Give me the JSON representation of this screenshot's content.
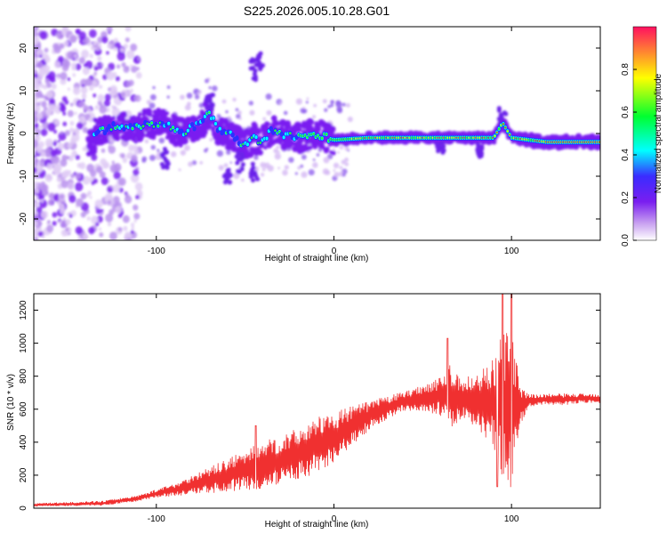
{
  "title": "S225.2026.005.10.28.G01",
  "chart_data": [
    {
      "type": "heatmap",
      "xlabel": "Height of straight line (km)",
      "ylabel": "Frequency (Hz)",
      "xlim": [
        -169,
        150
      ],
      "ylim": [
        -25,
        25
      ],
      "xticks": [
        -100,
        0,
        100
      ],
      "xtick_labels": [
        "-100",
        "0",
        "100"
      ],
      "yticks": [
        -20,
        -10,
        0,
        10,
        20
      ],
      "ytick_labels": [
        "-20",
        "-10",
        "0",
        "10",
        "20"
      ],
      "colorbar": {
        "label": "Normalized spectral amplitude",
        "range": [
          0,
          1
        ],
        "ticks": [
          0.0,
          0.2,
          0.4,
          0.6,
          0.8
        ],
        "tick_labels": [
          "0.0",
          "0.2",
          "0.4",
          "0.6",
          "0.8"
        ],
        "colors": [
          "#ffffff",
          "#c8a0f0",
          "#7a1ef0",
          "#3a2cff",
          "#00ffff",
          "#00ff30",
          "#ffff00",
          "#ff2020"
        ]
      },
      "ridge_frequency_hz": [
        [
          -135,
          0.0
        ],
        [
          -125,
          1.5
        ],
        [
          -115,
          1.8
        ],
        [
          -105,
          2.0
        ],
        [
          -95,
          2.5
        ],
        [
          -90,
          1.0
        ],
        [
          -85,
          0.0
        ],
        [
          -80,
          1.5
        ],
        [
          -75,
          2.0
        ],
        [
          -70,
          5.0
        ],
        [
          -65,
          1.0
        ],
        [
          -60,
          0.0
        ],
        [
          -55,
          -1.0
        ],
        [
          -50,
          -3.0
        ],
        [
          -45,
          -1.0
        ],
        [
          -40,
          -2.0
        ],
        [
          -35,
          1.0
        ],
        [
          -30,
          0.0
        ],
        [
          -20,
          -1.0
        ],
        [
          -10,
          0.0
        ],
        [
          0,
          -1.5
        ],
        [
          20,
          -1.0
        ],
        [
          40,
          -1.0
        ],
        [
          60,
          -1.0
        ],
        [
          80,
          -1.0
        ],
        [
          90,
          -1.0
        ],
        [
          95,
          2.5
        ],
        [
          100,
          -1.0
        ],
        [
          120,
          -2.0
        ],
        [
          150,
          -2.0
        ]
      ]
    },
    {
      "type": "line",
      "xlabel": "Height of straight line (km)",
      "ylabel": "SNR (10 * v/v)",
      "xlim": [
        -169,
        150
      ],
      "ylim": [
        0,
        1300
      ],
      "xticks": [
        -100,
        0,
        100
      ],
      "xtick_labels": [
        "-100",
        "0",
        "100"
      ],
      "yticks": [
        0,
        200,
        400,
        600,
        800,
        1000,
        1200
      ],
      "ytick_labels": [
        "0",
        "200",
        "400",
        "600",
        "800",
        "1000",
        "1200"
      ],
      "series": [
        {
          "name": "SNR",
          "color": "#f03030",
          "envelope_x": [
            -169,
            -150,
            -130,
            -110,
            -100,
            -90,
            -80,
            -70,
            -60,
            -50,
            -40,
            -30,
            -20,
            -10,
            0,
            10,
            20,
            30,
            40,
            50,
            60,
            65,
            70,
            80,
            90,
            95,
            100,
            105,
            110,
            120,
            130,
            140,
            150
          ],
          "envelope_mean": [
            20,
            25,
            30,
            60,
            90,
            110,
            140,
            170,
            200,
            230,
            260,
            290,
            330,
            380,
            430,
            500,
            560,
            610,
            650,
            670,
            680,
            680,
            660,
            650,
            640,
            620,
            600,
            620,
            650,
            660,
            660,
            665,
            665
          ],
          "envelope_amp": [
            10,
            12,
            15,
            20,
            25,
            40,
            60,
            80,
            100,
            120,
            150,
            140,
            160,
            170,
            150,
            120,
            90,
            70,
            60,
            80,
            120,
            200,
            140,
            160,
            280,
            450,
            500,
            120,
            40,
            35,
            35,
            30,
            30
          ],
          "peak_points": [
            [
              -44,
              500
            ],
            [
              64,
              1030
            ],
            [
              95,
              1300
            ],
            [
              100,
              1300
            ],
            [
              92,
              130
            ]
          ]
        }
      ]
    }
  ]
}
